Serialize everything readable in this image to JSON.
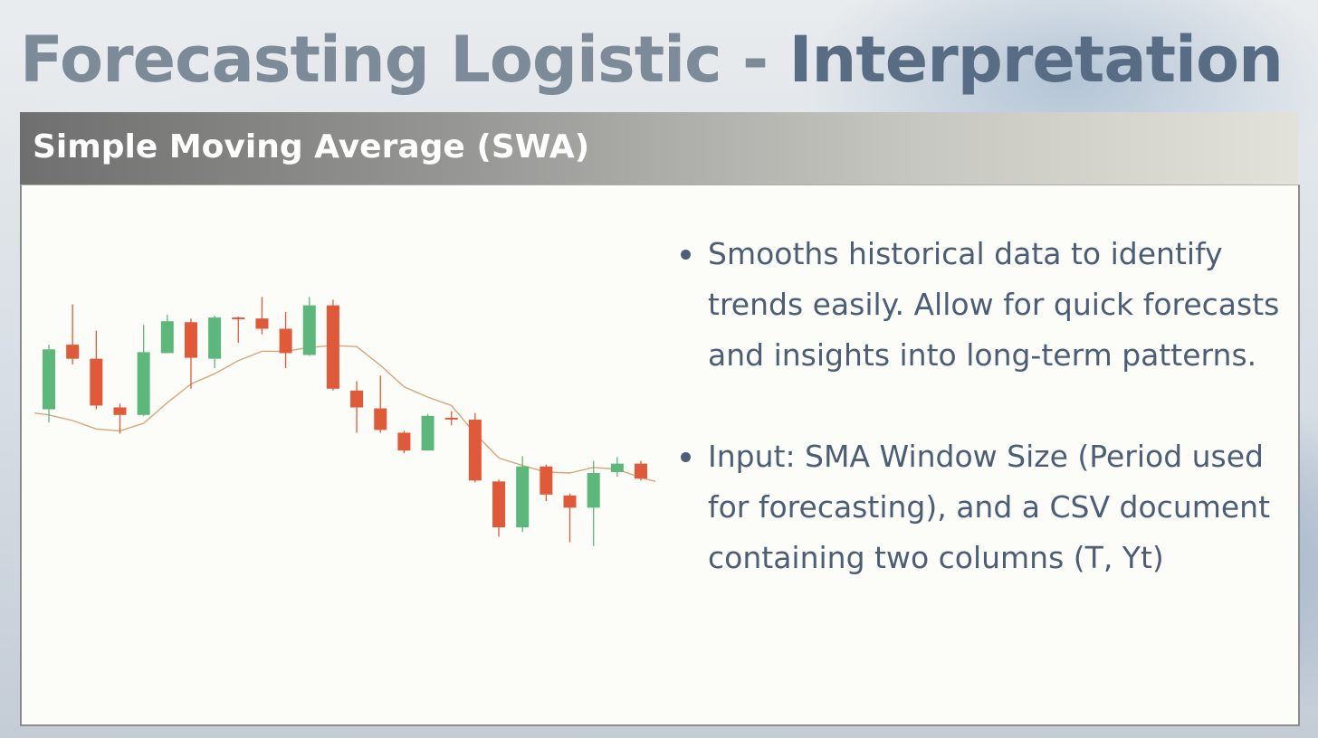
{
  "slide": {
    "title_part1": "Forecasting Logistic",
    "title_separator": " - ",
    "title_part2": "Interpretation",
    "section_title": "Simple Moving Average (SWA)"
  },
  "bullets": [
    {
      "text": " Smooths historical data to identify trends easily. Allow for quick forecasts and insights into long-term patterns."
    },
    {
      "text": "Input: SMA Window Size (Period used for forecasting), and a CSV document containing two columns (T, Yt)"
    }
  ],
  "chart_data": {
    "type": "candlestick",
    "up_color": "#5cb87a",
    "down_color": "#e05a3a",
    "sma_color": "#d6a67a",
    "candles": [
      {
        "open": 132,
        "close": 196,
        "high": 201,
        "low": 118
      },
      {
        "open": 201,
        "close": 186,
        "high": 244,
        "low": 180
      },
      {
        "open": 186,
        "close": 136,
        "high": 216,
        "low": 132
      },
      {
        "open": 134,
        "close": 126,
        "high": 138,
        "low": 106
      },
      {
        "open": 126,
        "close": 193,
        "high": 222,
        "low": 125
      },
      {
        "open": 192,
        "close": 226,
        "high": 233,
        "low": 192
      },
      {
        "open": 225,
        "close": 187,
        "high": 229,
        "low": 154
      },
      {
        "open": 186,
        "close": 230,
        "high": 232,
        "low": 176
      },
      {
        "open": 230,
        "close": 229,
        "high": 231,
        "low": 203
      },
      {
        "open": 229,
        "close": 218,
        "high": 252,
        "low": 212
      },
      {
        "open": 218,
        "close": 192,
        "high": 236,
        "low": 176
      },
      {
        "open": 190,
        "close": 243,
        "high": 252,
        "low": 189
      },
      {
        "open": 243,
        "close": 154,
        "high": 249,
        "low": 152
      },
      {
        "open": 152,
        "close": 134,
        "high": 162,
        "low": 107
      },
      {
        "open": 133,
        "close": 110,
        "high": 168,
        "low": 107
      },
      {
        "open": 107,
        "close": 88,
        "high": 109,
        "low": 85
      },
      {
        "open": 88,
        "close": 125,
        "high": 127,
        "low": 88
      },
      {
        "open": 123,
        "close": 122,
        "high": 130,
        "low": 115
      },
      {
        "open": 121,
        "close": 56,
        "high": 128,
        "low": 54
      },
      {
        "open": 55,
        "close": 6,
        "high": 57,
        "low": -4
      },
      {
        "open": 6,
        "close": 71,
        "high": 82,
        "low": 1
      },
      {
        "open": 71,
        "close": 41,
        "high": 73,
        "low": 34
      },
      {
        "open": 40,
        "close": 27,
        "high": 42,
        "low": -10
      },
      {
        "open": 27,
        "close": 64,
        "high": 77,
        "low": -14
      },
      {
        "open": 65,
        "close": 74,
        "high": 81,
        "low": 60
      },
      {
        "open": 74,
        "close": 58,
        "high": 77,
        "low": 56
      }
    ],
    "sma": [
      126,
      120,
      111,
      109,
      117,
      139,
      159,
      170,
      184,
      194,
      194,
      198,
      200,
      199,
      179,
      156,
      145,
      136,
      106,
      80,
      72,
      65,
      64,
      70,
      68,
      59
    ],
    "ylim": [
      -20,
      260
    ]
  }
}
